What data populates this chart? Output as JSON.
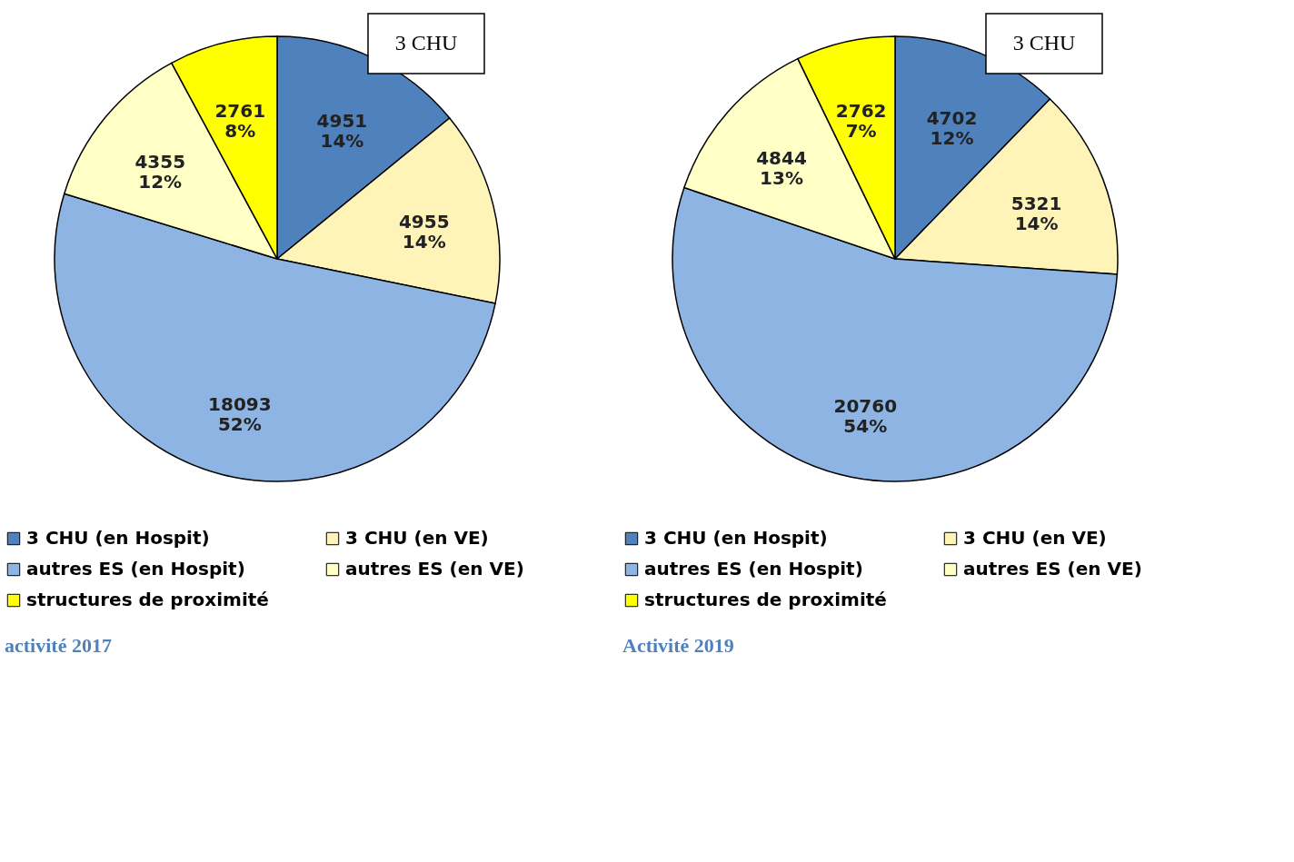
{
  "chart_data": [
    {
      "type": "pie",
      "title": "activité 2017",
      "legend": "bottom",
      "categories": [
        "3 CHU (en Hospit)",
        "3 CHU (en VE)",
        "autres ES (en Hospit)",
        "autres ES (en VE)",
        "structures de proximité"
      ],
      "values": [
        4951,
        4955,
        18093,
        4355,
        2761
      ],
      "colors": [
        "#4f81bd",
        "#fff4b8",
        "#8eb4e3",
        "#ffffc6",
        "#ffff00"
      ],
      "value_labels": [
        "4951\n14%",
        "4955\n14%",
        "18093\n52%",
        "4355\n12%",
        "2761\n8%"
      ],
      "annotations": [
        "3 CHU"
      ]
    },
    {
      "type": "pie",
      "title": "Activité 2019",
      "legend": "bottom",
      "categories": [
        "3 CHU (en Hospit)",
        "3 CHU (en VE)",
        "autres ES (en Hospit)",
        "autres ES (en VE)",
        "structures de proximité"
      ],
      "values": [
        4702,
        5321,
        20760,
        4844,
        2762
      ],
      "colors": [
        "#4f81bd",
        "#fff4b8",
        "#8eb4e3",
        "#ffffc6",
        "#ffff00"
      ],
      "value_labels": [
        "4702\n12%",
        "5321\n14%",
        "20760\n54%",
        "4844\n13%",
        "2762\n7%"
      ],
      "annotations": [
        "3 CHU"
      ]
    }
  ]
}
